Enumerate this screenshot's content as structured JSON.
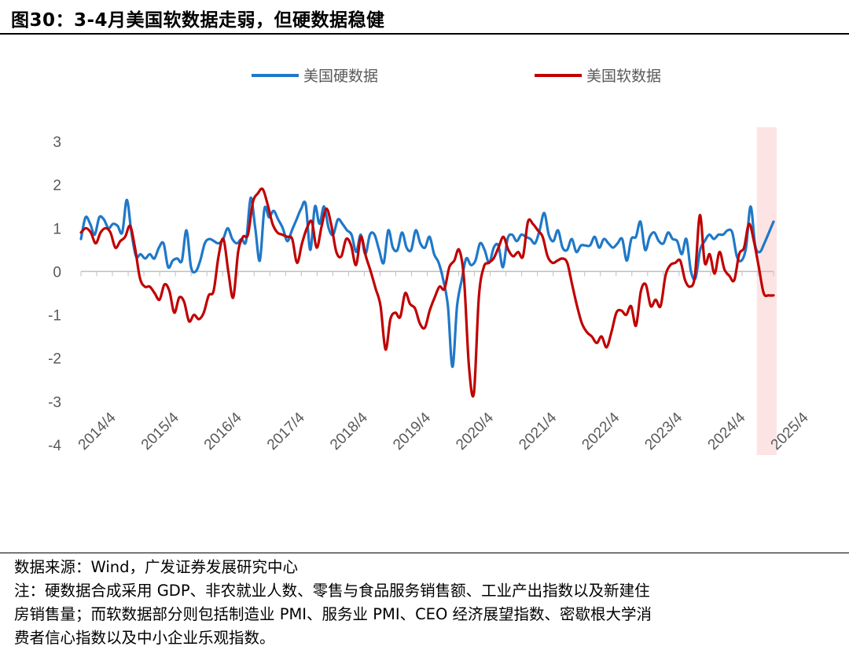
{
  "header": {
    "title": "图30：3-4月美国软数据走弱，但硬数据稳健"
  },
  "footer": {
    "source": "数据来源：Wind，广发证券发展研究中心",
    "note_line1": "注：硬数据合成采用 GDP、非农就业人数、零售与食品服务销售额、工业产出指数以及新建住",
    "note_line2": "房销售量；而软数据部分则包括制造业 PMI、服务业 PMI、CEO 经济展望指数、密歇根大学消",
    "note_line3": "费者信心指数以及中小企业乐观指数。"
  },
  "chart_data": {
    "type": "line",
    "x_start": "2014/4",
    "x_ticks": [
      "2014/4",
      "2015/4",
      "2016/4",
      "2017/4",
      "2018/4",
      "2019/4",
      "2020/4",
      "2021/4",
      "2022/4",
      "2023/4",
      "2024/4",
      "2025/4"
    ],
    "y_ticks": [
      3,
      2,
      1,
      0,
      -1,
      -2,
      -3,
      -4
    ],
    "ylim": [
      -4,
      3
    ],
    "grid": false,
    "legend_position": "top",
    "highlight_region": {
      "from": "2025/2",
      "to": "2025/4",
      "color": "#FCE4E4"
    },
    "series": [
      {
        "name": "美国硬数据",
        "color": "#1F78C8",
        "values": [
          0.75,
          1.25,
          1.1,
          0.85,
          1.25,
          1.2,
          1.0,
          1.1,
          1.05,
          0.9,
          1.65,
          0.9,
          0.35,
          0.4,
          0.3,
          0.4,
          0.3,
          0.55,
          0.65,
          0.1,
          0.25,
          0.3,
          0.25,
          0.95,
          0.1,
          0.0,
          0.25,
          0.65,
          0.75,
          0.7,
          0.65,
          0.75,
          1.0,
          0.75,
          0.65,
          0.75,
          0.7,
          1.7,
          1.0,
          0.25,
          1.45,
          1.25,
          1.4,
          1.2,
          1.0,
          0.7,
          0.95,
          1.2,
          1.45,
          1.55,
          0.5,
          1.5,
          1.1,
          1.5,
          1.0,
          0.85,
          1.2,
          1.1,
          0.95,
          0.85,
          0.45,
          0.85,
          0.4,
          0.85,
          0.85,
          0.5,
          0.2,
          0.95,
          0.55,
          0.5,
          0.9,
          0.55,
          0.5,
          0.95,
          0.65,
          0.55,
          0.8,
          0.4,
          0.2,
          -0.2,
          -0.8,
          -2.2,
          -0.8,
          -0.2,
          0.3,
          0.15,
          0.25,
          0.65,
          0.5,
          0.2,
          0.55,
          0.6,
          0.1,
          0.75,
          0.85,
          0.7,
          0.85,
          0.8,
          0.75,
          0.65,
          0.95,
          1.35,
          0.85,
          0.7,
          0.95,
          0.55,
          0.5,
          0.75,
          0.45,
          0.6,
          0.6,
          0.6,
          0.8,
          0.55,
          0.75,
          0.65,
          0.55,
          0.65,
          0.75,
          0.25,
          0.75,
          0.8,
          1.15,
          0.5,
          0.8,
          0.9,
          0.7,
          0.65,
          0.9,
          0.75,
          0.7,
          0.4,
          0.75,
          0.0,
          -0.15,
          0.5,
          0.7,
          0.85,
          0.75,
          0.85,
          0.85,
          0.95,
          0.9,
          0.35,
          0.25,
          0.55,
          1.5,
          0.6,
          0.45,
          0.65,
          0.9,
          1.15
        ]
      },
      {
        "name": "美国软数据",
        "color": "#C00000",
        "values": [
          0.9,
          1.0,
          0.9,
          0.65,
          0.9,
          1.0,
          0.9,
          0.55,
          0.7,
          0.8,
          1.05,
          0.55,
          -0.15,
          -0.35,
          -0.35,
          -0.5,
          -0.65,
          -0.3,
          -0.45,
          -0.95,
          -0.6,
          -0.7,
          -1.15,
          -1.0,
          -1.1,
          -0.95,
          -0.55,
          -0.45,
          0.35,
          0.75,
          0.0,
          -0.6,
          0.45,
          0.8,
          0.85,
          1.6,
          1.8,
          1.9,
          1.55,
          1.1,
          0.9,
          0.85,
          0.8,
          0.75,
          0.2,
          0.65,
          1.0,
          1.15,
          0.55,
          1.05,
          1.45,
          1.05,
          0.45,
          0.35,
          0.75,
          0.6,
          0.15,
          0.8,
          0.35,
          0.0,
          -0.4,
          -0.8,
          -1.8,
          -1.1,
          -0.95,
          -1.05,
          -0.5,
          -0.75,
          -0.85,
          -1.2,
          -1.3,
          -0.9,
          -0.6,
          -0.35,
          -0.4,
          0.1,
          0.25,
          0.5,
          -0.2,
          -2.2,
          -2.8,
          -0.6,
          0.1,
          0.2,
          0.3,
          0.55,
          0.8,
          0.5,
          0.35,
          0.45,
          0.35,
          1.15,
          1.1,
          0.95,
          0.8,
          0.35,
          0.2,
          0.25,
          0.3,
          0.2,
          -0.3,
          -0.8,
          -1.2,
          -1.4,
          -1.5,
          -1.65,
          -1.5,
          -1.75,
          -1.4,
          -0.95,
          -0.9,
          -1.0,
          -0.8,
          -1.25,
          -0.45,
          -0.3,
          -0.8,
          -0.65,
          -0.8,
          -0.1,
          0.15,
          0.2,
          0.25,
          -0.2,
          -0.35,
          -0.1,
          1.3,
          0.2,
          0.4,
          -0.05,
          0.45,
          0.05,
          -0.1,
          -0.2,
          0.4,
          0.55,
          1.1,
          0.7,
          0.1,
          -0.5,
          -0.55,
          -0.55
        ]
      }
    ]
  }
}
